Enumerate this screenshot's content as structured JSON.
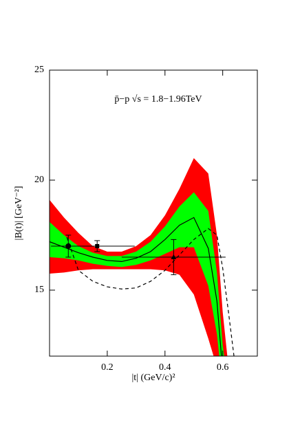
{
  "chart_data": {
    "type": "line",
    "title": "p̄−p √s = 1.8−1.96TeV",
    "xlabel": "|t| (GeV/c)²",
    "ylabel": "|B(t)| [GeV⁻²]",
    "xlim": [
      0,
      0.72
    ],
    "ylim": [
      12,
      25
    ],
    "xticks": [
      0.2,
      0.4,
      0.6
    ],
    "yticks": [
      15,
      20,
      25
    ],
    "x": [
      0,
      0.05,
      0.1,
      0.15,
      0.2,
      0.25,
      0.3,
      0.35,
      0.4,
      0.45,
      0.5,
      0.55,
      0.58,
      0.6,
      0.62
    ],
    "bands": [
      {
        "color": "#ff0000",
        "upper": [
          19.1,
          18.3,
          17.6,
          17.0,
          16.75,
          16.75,
          17.0,
          17.5,
          18.4,
          19.6,
          21.0,
          20.3,
          17.5,
          14.0,
          11.5
        ],
        "lower": [
          15.75,
          15.8,
          15.9,
          15.95,
          15.95,
          15.95,
          15.95,
          15.95,
          15.9,
          15.7,
          14.8,
          12.8,
          11.5,
          9.5,
          9.0
        ]
      },
      {
        "color": "#00ff00",
        "upper": [
          18.1,
          17.5,
          17.0,
          16.7,
          16.55,
          16.55,
          16.75,
          17.2,
          17.9,
          18.8,
          19.45,
          18.6,
          15.8,
          12.5,
          10.5
        ],
        "lower": [
          16.5,
          16.45,
          16.35,
          16.2,
          16.1,
          16.05,
          16.15,
          16.35,
          16.65,
          16.95,
          16.95,
          15.2,
          13.0,
          10.5,
          9.5
        ]
      }
    ],
    "series": [
      {
        "color": "#000000",
        "dashed": false,
        "values": [
          17.2,
          16.95,
          16.7,
          16.5,
          16.35,
          16.3,
          16.45,
          16.75,
          17.3,
          17.95,
          18.3,
          16.9,
          14.5,
          11.3,
          10.0
        ]
      },
      {
        "color": "#000000",
        "dashed": true,
        "x": [
          0.06,
          0.1,
          0.15,
          0.2,
          0.25,
          0.3,
          0.35,
          0.4,
          0.45,
          0.5,
          0.55,
          0.58,
          0.6,
          0.62,
          0.64
        ],
        "values": [
          17.4,
          15.9,
          15.4,
          15.15,
          15.05,
          15.1,
          15.4,
          15.9,
          16.6,
          17.3,
          17.8,
          17.5,
          16.0,
          14.0,
          11.9
        ]
      }
    ],
    "points": [
      {
        "marker": "circle",
        "x": 0.065,
        "y": 17.0,
        "xerr": 0.06,
        "yerr": 0.5
      },
      {
        "marker": "square",
        "x": 0.165,
        "y": 17.0,
        "xerr": 0.13,
        "yerr": 0.25
      },
      {
        "marker": "triangle",
        "x": 0.43,
        "y": 16.5,
        "xerr": 0.18,
        "yerr": 0.8
      }
    ]
  }
}
